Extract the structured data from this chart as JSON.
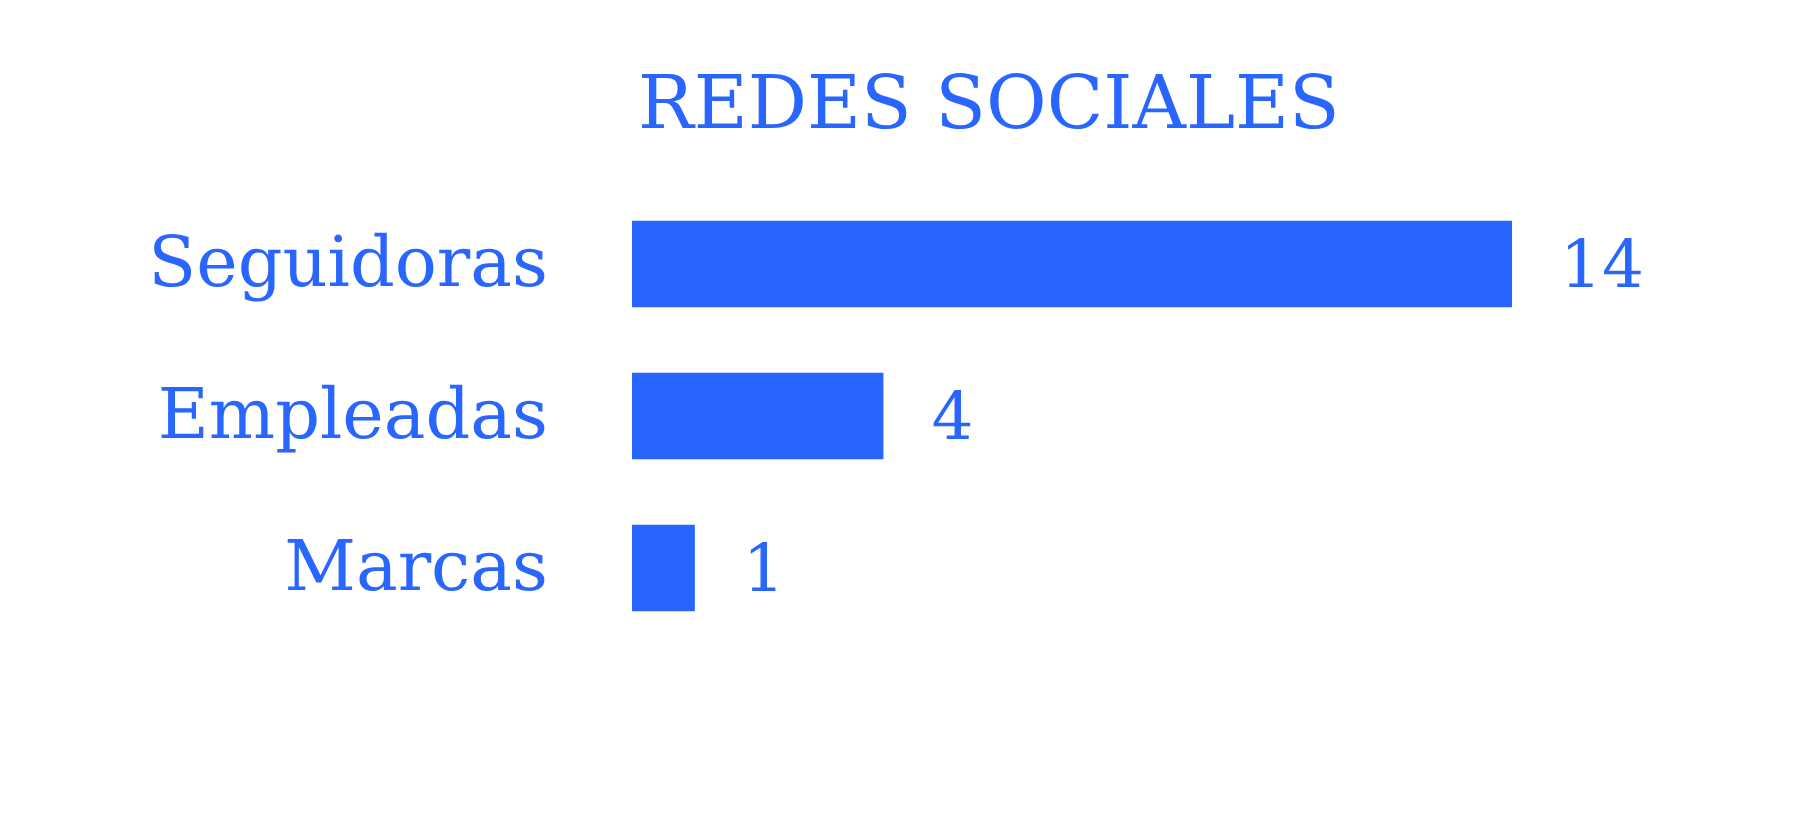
{
  "chart_data": {
    "type": "bar",
    "orientation": "horizontal",
    "title": "REDES SOCIALES",
    "categories": [
      "Seguidoras",
      "Empleadas",
      "Marcas"
    ],
    "values": [
      14,
      4,
      1
    ],
    "color": "#2966ff",
    "data_labels": true
  }
}
